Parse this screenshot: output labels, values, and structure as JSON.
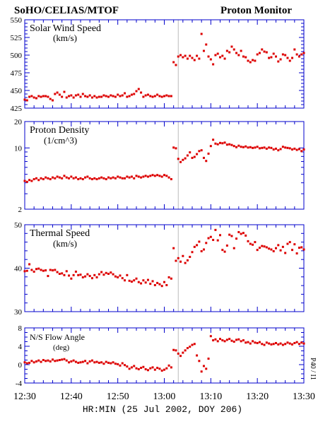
{
  "header": {
    "left": "SoHO/CELIAS/MTOF",
    "right": "Proton Monitor"
  },
  "x_axis": {
    "label": "HR:MIN (25 Jul 2002, DOY 206)",
    "tick_labels": [
      "12:30",
      "12:40",
      "12:50",
      "13:00",
      "13:10",
      "13:20",
      "13:30"
    ],
    "range_minutes": [
      0,
      60
    ],
    "gap_marker_minute": 33
  },
  "side_label": "P40 / I1",
  "colors": {
    "points": "#dd0000",
    "axes": "#0000cc",
    "gap_line": "#bbbbbb"
  },
  "chart_data": [
    {
      "type": "scatter",
      "title": "Solar Wind Speed",
      "unit": "(km/s)",
      "ylim": [
        425,
        550
      ],
      "scale": "linear",
      "ytick_labels": [
        "425",
        "450",
        "475",
        "500",
        "525",
        "550"
      ],
      "ytick_values": [
        425,
        450,
        475,
        500,
        525,
        550
      ],
      "x": [
        0,
        0.5,
        1,
        1.5,
        2,
        2.5,
        3,
        3.5,
        4,
        4.5,
        5,
        5.5,
        6,
        6.5,
        7,
        7.5,
        8,
        8.5,
        9,
        9.5,
        10,
        10.5,
        11,
        11.5,
        12,
        12.5,
        13,
        13.5,
        14,
        14.5,
        15,
        15.5,
        16,
        16.5,
        17,
        17.5,
        18,
        18.5,
        19,
        19.5,
        20,
        20.5,
        21,
        21.5,
        22,
        22.5,
        23,
        23.5,
        24,
        24.5,
        25,
        25.5,
        26,
        26.5,
        27,
        27.5,
        28,
        28.5,
        29,
        29.5,
        30,
        30.5,
        31,
        31.5,
        32,
        32.5,
        33,
        33.5,
        34,
        34.5,
        35,
        35.5,
        36,
        36.5,
        37,
        37.5,
        38,
        38.5,
        39,
        39.5,
        40,
        40.5,
        41,
        41.5,
        42,
        42.5,
        43,
        43.5,
        44,
        44.5,
        45,
        45.5,
        46,
        46.5,
        47,
        47.5,
        48,
        48.5,
        49,
        49.5,
        50,
        50.5,
        51,
        51.5,
        52,
        52.5,
        53,
        53.5,
        54,
        54.5,
        55,
        55.5,
        56,
        56.5,
        57,
        57.5,
        58,
        58.5,
        59,
        59.5,
        60
      ],
      "y": [
        437,
        436,
        441,
        442,
        440,
        439,
        442,
        441,
        442,
        442,
        441,
        438,
        436,
        445,
        447,
        444,
        441,
        448,
        440,
        442,
        443,
        440,
        443,
        444,
        441,
        445,
        442,
        441,
        443,
        440,
        442,
        440,
        441,
        441,
        443,
        442,
        441,
        443,
        442,
        441,
        444,
        442,
        443,
        446,
        441,
        442,
        444,
        445,
        449,
        452,
        447,
        441,
        443,
        444,
        442,
        441,
        442,
        444,
        442,
        441,
        442,
        443,
        442,
        442,
        490,
        486,
        498,
        500,
        497,
        499,
        495,
        499,
        496,
        493,
        499,
        495,
        530,
        506,
        515,
        498,
        494,
        487,
        500,
        502,
        497,
        499,
        495,
        506,
        504,
        512,
        508,
        503,
        500,
        506,
        498,
        497,
        492,
        490,
        493,
        492,
        501,
        503,
        508,
        505,
        504,
        496,
        497,
        502,
        498,
        491,
        494,
        501,
        500,
        496,
        492,
        496,
        508,
        501,
        498,
        501,
        503
      ],
      "series": [
        {
          "name": "Solar Wind Speed"
        }
      ]
    },
    {
      "type": "scatter",
      "title": "Proton Density",
      "unit": "(1/cm^3)",
      "ylim": [
        2,
        20
      ],
      "scale": "log",
      "ytick_labels": [
        "2",
        "10",
        "20"
      ],
      "ytick_values": [
        2,
        10,
        20
      ],
      "x": [
        0,
        0.5,
        1,
        1.5,
        2,
        2.5,
        3,
        3.5,
        4,
        4.5,
        5,
        5.5,
        6,
        6.5,
        7,
        7.5,
        8,
        8.5,
        9,
        9.5,
        10,
        10.5,
        11,
        11.5,
        12,
        12.5,
        13,
        13.5,
        14,
        14.5,
        15,
        15.5,
        16,
        16.5,
        17,
        17.5,
        18,
        18.5,
        19,
        19.5,
        20,
        20.5,
        21,
        21.5,
        22,
        22.5,
        23,
        23.5,
        24,
        24.5,
        25,
        25.5,
        26,
        26.5,
        27,
        27.5,
        28,
        28.5,
        29,
        29.5,
        30,
        30.5,
        31,
        31.5,
        32,
        32.5,
        33,
        33.5,
        34,
        34.5,
        35,
        35.5,
        36,
        36.5,
        37,
        37.5,
        38,
        38.5,
        39,
        39.5,
        40,
        40.5,
        41,
        41.5,
        42,
        42.5,
        43,
        43.5,
        44,
        44.5,
        45,
        45.5,
        46,
        46.5,
        47,
        47.5,
        48,
        48.5,
        49,
        49.5,
        50,
        50.5,
        51,
        51.5,
        52,
        52.5,
        53,
        53.5,
        54,
        54.5,
        55,
        55.5,
        56,
        56.5,
        57,
        57.5,
        58,
        58.5,
        59,
        59.5,
        60
      ],
      "y": [
        4.2,
        4.1,
        4.3,
        4.2,
        4.4,
        4.5,
        4.3,
        4.5,
        4.4,
        4.6,
        4.5,
        4.4,
        4.6,
        4.5,
        4.7,
        4.6,
        4.5,
        4.8,
        4.6,
        4.5,
        4.7,
        4.5,
        4.6,
        4.4,
        4.5,
        4.4,
        4.6,
        4.7,
        4.5,
        4.4,
        4.5,
        4.4,
        4.5,
        4.6,
        4.5,
        4.4,
        4.6,
        4.5,
        4.6,
        4.5,
        4.7,
        4.6,
        4.5,
        4.5,
        4.7,
        4.6,
        4.7,
        4.5,
        4.8,
        4.7,
        4.6,
        4.7,
        4.8,
        4.7,
        4.8,
        4.9,
        4.8,
        4.9,
        4.8,
        4.7,
        4.9,
        4.8,
        4.6,
        4.4,
        10.1,
        9.9,
        7.5,
        6.9,
        7.3,
        7.6,
        8.2,
        8.9,
        7.7,
        7.9,
        8.5,
        9.2,
        9.4,
        7.7,
        7.1,
        8.6,
        10.5,
        12.4,
        11.2,
        11.0,
        11.4,
        11.3,
        11.5,
        10.9,
        11.0,
        10.8,
        10.5,
        10.2,
        10.6,
        10.3,
        10.2,
        10.4,
        10.1,
        10.2,
        10.0,
        10.1,
        10.3,
        9.9,
        10.0,
        10.1,
        9.8,
        10.1,
        10.0,
        9.6,
        9.8,
        9.4,
        9.7,
        10.3,
        10.1,
        10.0,
        9.9,
        9.6,
        9.8,
        9.5,
        9.7,
        9.2,
        9.6
      ],
      "series": [
        {
          "name": "Proton Density"
        }
      ]
    },
    {
      "type": "scatter",
      "title": "Thermal Speed",
      "unit": "(km/s)",
      "ylim": [
        30,
        50
      ],
      "scale": "linear",
      "ytick_labels": [
        "30",
        "40",
        "50"
      ],
      "ytick_values": [
        30,
        40,
        50
      ],
      "x": [
        0,
        0.5,
        1,
        1.5,
        2,
        2.5,
        3,
        3.5,
        4,
        4.5,
        5,
        5.5,
        6,
        6.5,
        7,
        7.5,
        8,
        8.5,
        9,
        9.5,
        10,
        10.5,
        11,
        11.5,
        12,
        12.5,
        13,
        13.5,
        14,
        14.5,
        15,
        15.5,
        16,
        16.5,
        17,
        17.5,
        18,
        18.5,
        19,
        19.5,
        20,
        20.5,
        21,
        21.5,
        22,
        22.5,
        23,
        23.5,
        24,
        24.5,
        25,
        25.5,
        26,
        26.5,
        27,
        27.5,
        28,
        28.5,
        29,
        29.5,
        30,
        30.5,
        31,
        31.5,
        32,
        32.5,
        33,
        33.5,
        34,
        34.5,
        35,
        35.5,
        36,
        36.5,
        37,
        37.5,
        38,
        38.5,
        39,
        39.5,
        40,
        40.5,
        41,
        41.5,
        42,
        42.5,
        43,
        43.5,
        44,
        44.5,
        45,
        45.5,
        46,
        46.5,
        47,
        47.5,
        48,
        48.5,
        49,
        49.5,
        50,
        50.5,
        51,
        51.5,
        52,
        52.5,
        53,
        53.5,
        54,
        54.5,
        55,
        55.5,
        56,
        56.5,
        57,
        57.5,
        58,
        58.5,
        59,
        59.5,
        60
      ],
      "y": [
        39.3,
        39.4,
        40.9,
        39.6,
        39.2,
        39.8,
        39.9,
        39.6,
        39.4,
        39.5,
        38.2,
        39.6,
        39.5,
        39.6,
        39.1,
        38.7,
        38.8,
        38.4,
        39.3,
        38.3,
        37.6,
        38.4,
        39.2,
        38.4,
        38.5,
        37.9,
        38.1,
        38.6,
        38.2,
        37.7,
        38.4,
        37.9,
        38.6,
        39.1,
        38.5,
        38.9,
        38.7,
        39.0,
        38.6,
        38.1,
        37.9,
        38.3,
        37.7,
        37.2,
        38.4,
        37.1,
        36.9,
        37.2,
        37.6,
        36.8,
        36.5,
        37.2,
        36.7,
        37.3,
        36.4,
        37.0,
        36.1,
        36.6,
        36.3,
        35.9,
        36.8,
        36.1,
        37.9,
        37.6,
        44.6,
        41.7,
        42.3,
        41.5,
        42.8,
        41.2,
        41.8,
        42.6,
        43.7,
        44.9,
        45.3,
        46.1,
        43.9,
        44.3,
        45.8,
        46.9,
        47.2,
        46.5,
        48.8,
        46.4,
        47.6,
        44.2,
        43.8,
        45.2,
        47.7,
        47.4,
        44.6,
        46.8,
        48.3,
        47.9,
        48.1,
        47.5,
        46.2,
        45.6,
        45.4,
        46.0,
        44.2,
        44.7,
        45.1,
        45.0,
        44.8,
        44.5,
        44.3,
        43.9,
        44.6,
        45.3,
        44.1,
        44.9,
        43.5,
        45.6,
        46.0,
        44.2,
        45.5,
        43.4,
        44.7,
        44.8,
        44.3
      ],
      "series": [
        {
          "name": "Thermal Speed"
        }
      ]
    },
    {
      "type": "scatter",
      "title": "N/S Flow Angle",
      "unit": "(deg)",
      "ylim": [
        -4,
        8
      ],
      "scale": "linear",
      "ytick_labels": [
        "-4",
        "0",
        "4",
        "8"
      ],
      "ytick_values": [
        -4,
        0,
        4,
        8
      ],
      "x": [
        0,
        0.5,
        1,
        1.5,
        2,
        2.5,
        3,
        3.5,
        4,
        4.5,
        5,
        5.5,
        6,
        6.5,
        7,
        7.5,
        8,
        8.5,
        9,
        9.5,
        10,
        10.5,
        11,
        11.5,
        12,
        12.5,
        13,
        13.5,
        14,
        14.5,
        15,
        15.5,
        16,
        16.5,
        17,
        17.5,
        18,
        18.5,
        19,
        19.5,
        20,
        20.5,
        21,
        21.5,
        22,
        22.5,
        23,
        23.5,
        24,
        24.5,
        25,
        25.5,
        26,
        26.5,
        27,
        27.5,
        28,
        28.5,
        29,
        29.5,
        30,
        30.5,
        31,
        31.5,
        32,
        32.5,
        33,
        33.5,
        34,
        34.5,
        35,
        35.5,
        36,
        36.5,
        37,
        37.5,
        38,
        38.5,
        39,
        39.5,
        40,
        40.5,
        41,
        41.5,
        42,
        42.5,
        43,
        43.5,
        44,
        44.5,
        45,
        45.5,
        46,
        46.5,
        47,
        47.5,
        48,
        48.5,
        49,
        49.5,
        50,
        50.5,
        51,
        51.5,
        52,
        52.5,
        53,
        53.5,
        54,
        54.5,
        55,
        55.5,
        56,
        56.5,
        57,
        57.5,
        58,
        58.5,
        59,
        59.5,
        60
      ],
      "y": [
        0.5,
        0.3,
        0.4,
        0.8,
        0.5,
        0.7,
        0.9,
        0.6,
        1.0,
        0.8,
        0.9,
        0.7,
        1.1,
        0.8,
        0.9,
        1.0,
        1.1,
        1.2,
        0.9,
        0.5,
        0.7,
        0.9,
        0.6,
        0.4,
        0.5,
        0.6,
        0.8,
        0.3,
        0.7,
        0.9,
        0.5,
        0.6,
        0.4,
        0.5,
        0.2,
        0.6,
        0.4,
        0.3,
        0.5,
        0.2,
        0.1,
        -0.2,
        0.3,
        -0.1,
        -0.4,
        -0.9,
        -0.6,
        -0.3,
        -0.8,
        -1.0,
        -0.7,
        -0.5,
        -1.0,
        -1.2,
        -0.8,
        -0.6,
        -1.1,
        -0.7,
        -0.9,
        -1.3,
        -1.1,
        -0.8,
        -0.2,
        -0.6,
        3.2,
        3.1,
        2.4,
        1.9,
        2.6,
        3.1,
        3.6,
        3.9,
        4.3,
        4.5,
        2.0,
        0.8,
        -1.5,
        -0.3,
        -0.9,
        1.3,
        6.2,
        5.3,
        5.5,
        5.1,
        5.6,
        5.3,
        5.1,
        5.4,
        5.6,
        5.2,
        5.0,
        5.4,
        5.5,
        5.1,
        5.3,
        4.8,
        4.9,
        4.6,
        5.1,
        4.8,
        4.7,
        4.9,
        4.5,
        4.3,
        4.8,
        4.6,
        4.4,
        4.5,
        4.7,
        4.4,
        4.6,
        4.3,
        4.5,
        4.8,
        4.6,
        4.4,
        4.7,
        4.9,
        4.5,
        4.8,
        4.6
      ],
      "series": [
        {
          "name": "N/S Flow Angle"
        }
      ]
    }
  ]
}
